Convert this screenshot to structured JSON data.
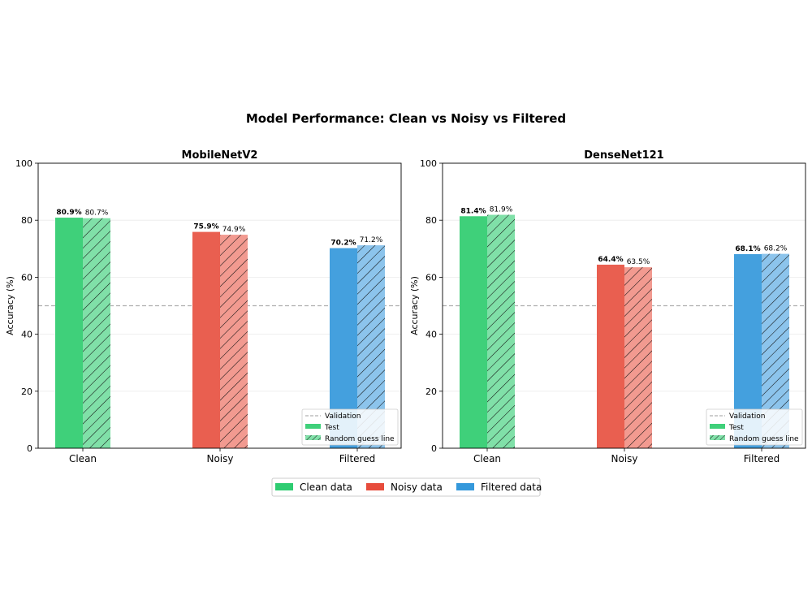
{
  "figure": {
    "title": "Model Performance: Clean vs Noisy vs Filtered"
  },
  "chart_data": [
    {
      "type": "bar",
      "title": "MobileNetV2",
      "ylabel": "Accuracy (%)",
      "ylim": [
        0,
        100
      ],
      "yticks": [
        "0",
        "20",
        "40",
        "60",
        "80",
        "100"
      ],
      "categories": [
        "Clean",
        "Noisy",
        "Filtered"
      ],
      "series": [
        {
          "name": "Test",
          "values": [
            80.9,
            75.9,
            70.2
          ],
          "labels": [
            "80.9%",
            "75.9%",
            "70.2%"
          ]
        },
        {
          "name": "Random guess line",
          "values": [
            80.7,
            74.9,
            71.2
          ],
          "labels": [
            "80.7%",
            "74.9%",
            "71.2%"
          ]
        }
      ],
      "reference_line": {
        "name": "Validation",
        "value": 50
      },
      "legend": {
        "placement": "lower-right",
        "entries": [
          "Validation",
          "Test",
          "Random guess line"
        ]
      },
      "grid": "y"
    },
    {
      "type": "bar",
      "title": "DenseNet121",
      "ylabel": "Accuracy (%)",
      "ylim": [
        0,
        100
      ],
      "yticks": [
        "0",
        "20",
        "40",
        "60",
        "80",
        "100"
      ],
      "categories": [
        "Clean",
        "Noisy",
        "Filtered"
      ],
      "series": [
        {
          "name": "Test",
          "values": [
            81.4,
            64.4,
            68.1
          ],
          "labels": [
            "81.4%",
            "64.4%",
            "68.1%"
          ]
        },
        {
          "name": "Random guess line",
          "values": [
            81.9,
            63.5,
            68.2
          ],
          "labels": [
            "81.9%",
            "63.5%",
            "68.2%"
          ]
        }
      ],
      "reference_line": {
        "name": "Validation",
        "value": 50
      },
      "legend": {
        "placement": "lower-right",
        "entries": [
          "Validation",
          "Test",
          "Random guess line"
        ]
      },
      "grid": "y"
    }
  ],
  "figure_legend": {
    "placement": "bottom-center",
    "entries": [
      {
        "label": "Clean data",
        "color": "#2ecc71"
      },
      {
        "label": "Noisy data",
        "color": "#e74c3c"
      },
      {
        "label": "Filtered data",
        "color": "#3498db"
      }
    ]
  },
  "colors": {
    "clean": "#3fd07a",
    "noisy": "#e95f50",
    "filtered": "#44a0de",
    "clean_light": "#80e0a8",
    "noisy_light": "#f29a90",
    "filtered_light": "#8cc4ec",
    "reference_line": "#b0b0b0"
  }
}
